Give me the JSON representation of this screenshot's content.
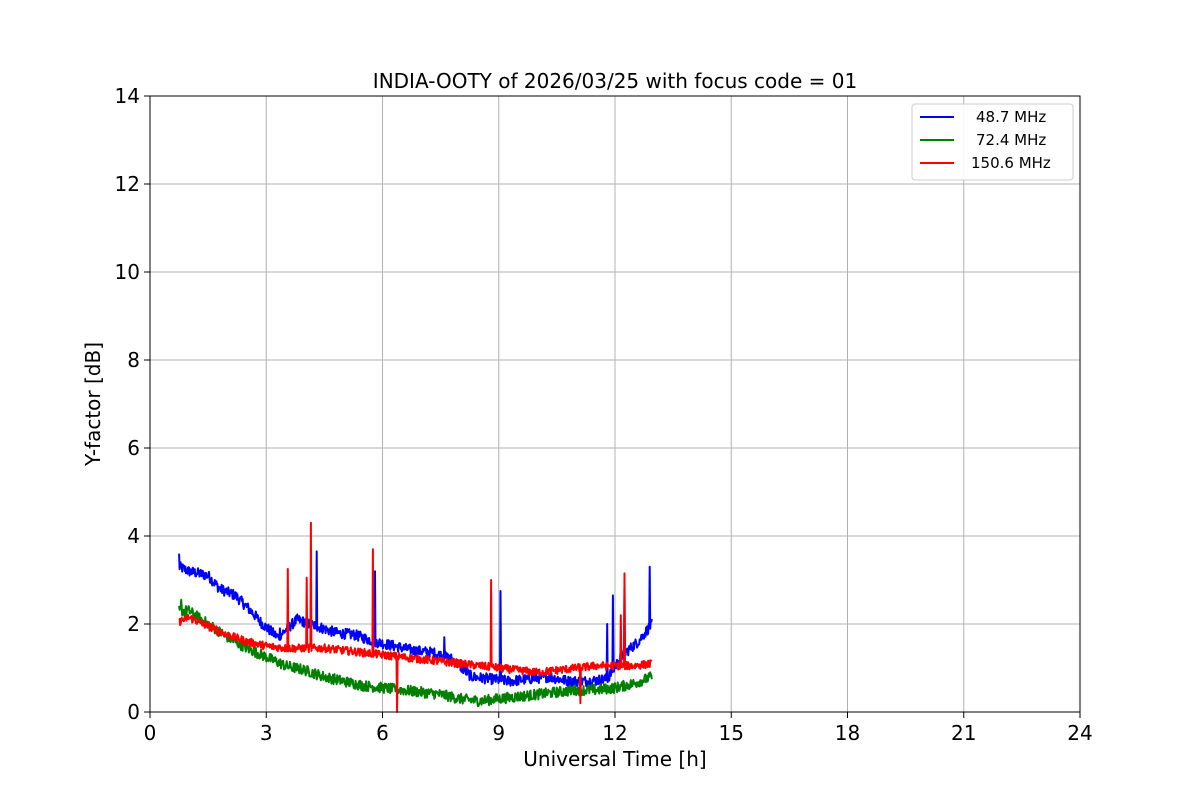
{
  "chart_data": {
    "type": "line",
    "title": "INDIA-OOTY of 2026/03/25 with focus code = 01",
    "xlabel": "Universal Time [h]",
    "ylabel": "Y-factor [dB]",
    "xlim": [
      0,
      24
    ],
    "ylim": [
      0,
      14
    ],
    "xticks": [
      0,
      3,
      6,
      9,
      12,
      15,
      18,
      21,
      24
    ],
    "yticks": [
      0,
      2,
      4,
      6,
      8,
      10,
      12,
      14
    ],
    "grid": true,
    "legend_position": "top-right",
    "series": [
      {
        "name": "48.7 MHz",
        "color": "#0000ff",
        "noise": 0.12,
        "x": [
          0.75,
          1.0,
          1.5,
          1.8,
          2.2,
          2.6,
          2.9,
          3.3,
          3.8,
          4.3,
          4.8,
          5.3,
          5.8,
          6.3,
          6.8,
          7.3,
          7.8,
          8.3,
          8.8,
          9.3,
          9.8,
          10.3,
          10.8,
          11.3,
          11.8,
          12.2,
          12.6,
          12.95
        ],
        "y": [
          3.3,
          3.2,
          3.1,
          2.8,
          2.65,
          2.3,
          2.0,
          1.7,
          2.1,
          1.95,
          1.8,
          1.75,
          1.6,
          1.5,
          1.4,
          1.35,
          1.2,
          0.8,
          0.75,
          0.7,
          0.75,
          0.8,
          0.7,
          0.7,
          0.75,
          1.3,
          1.6,
          2.0
        ],
        "spikes": [
          {
            "x": 0.75,
            "y": 3.6
          },
          {
            "x": 3.35,
            "y": 1.9
          },
          {
            "x": 4.3,
            "y": 3.65
          },
          {
            "x": 5.8,
            "y": 3.2
          },
          {
            "x": 7.6,
            "y": 1.7
          },
          {
            "x": 9.05,
            "y": 2.75
          },
          {
            "x": 11.8,
            "y": 2.0
          },
          {
            "x": 11.95,
            "y": 2.65
          },
          {
            "x": 12.25,
            "y": 2.9
          },
          {
            "x": 12.9,
            "y": 3.3
          }
        ]
      },
      {
        "name": "72.4 MHz",
        "color": "#008000",
        "noise": 0.12,
        "x": [
          0.75,
          1.0,
          1.5,
          2.0,
          2.5,
          3.0,
          3.5,
          4.0,
          4.5,
          5.0,
          5.5,
          6.0,
          6.5,
          7.0,
          7.5,
          8.0,
          8.5,
          9.0,
          9.5,
          10.0,
          10.5,
          11.0,
          11.5,
          12.0,
          12.5,
          12.95
        ],
        "y": [
          2.3,
          2.3,
          2.0,
          1.7,
          1.45,
          1.25,
          1.05,
          0.95,
          0.8,
          0.7,
          0.6,
          0.55,
          0.5,
          0.45,
          0.4,
          0.3,
          0.25,
          0.3,
          0.35,
          0.4,
          0.45,
          0.5,
          0.5,
          0.55,
          0.65,
          0.8
        ],
        "spikes": [
          {
            "x": 0.8,
            "y": 2.55
          }
        ]
      },
      {
        "name": "150.6 MHz",
        "color": "#ff0000",
        "noise": 0.09,
        "x": [
          0.75,
          1.0,
          1.5,
          2.0,
          2.5,
          3.0,
          3.5,
          4.0,
          4.5,
          5.0,
          5.5,
          6.0,
          6.5,
          7.0,
          7.5,
          8.0,
          8.5,
          9.0,
          9.5,
          10.0,
          10.5,
          11.0,
          11.5,
          12.0,
          12.5,
          12.95
        ],
        "y": [
          2.05,
          2.15,
          1.95,
          1.75,
          1.6,
          1.5,
          1.45,
          1.45,
          1.45,
          1.4,
          1.35,
          1.3,
          1.25,
          1.2,
          1.15,
          1.1,
          1.05,
          1.0,
          0.95,
          0.9,
          0.95,
          1.0,
          1.05,
          1.05,
          1.05,
          1.1
        ],
        "spikes": [
          {
            "x": 3.55,
            "y": 3.25
          },
          {
            "x": 4.05,
            "y": 3.05
          },
          {
            "x": 4.15,
            "y": 4.3
          },
          {
            "x": 5.75,
            "y": 3.7
          },
          {
            "x": 6.38,
            "y": 0.0
          },
          {
            "x": 8.8,
            "y": 3.0
          },
          {
            "x": 11.1,
            "y": 0.2
          },
          {
            "x": 12.15,
            "y": 2.2
          },
          {
            "x": 12.25,
            "y": 3.15
          }
        ]
      }
    ]
  }
}
